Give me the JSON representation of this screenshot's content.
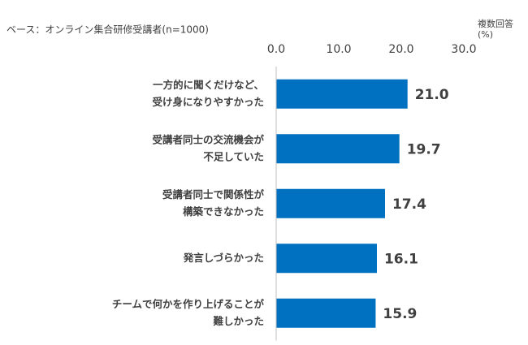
{
  "chart_data": {
    "type": "bar",
    "orientation": "horizontal",
    "annotation": "ベース：オンライン集合研修受講者(n=1000)",
    "note": [
      "複数回答",
      "(%)"
    ],
    "categories": [
      [
        "一方的に聞くだけなど、",
        "受け身になりやすかった"
      ],
      [
        "受講者同士の交流機会が",
        "不足していた"
      ],
      [
        "受講者同士で関係性が",
        "構築できなかった"
      ],
      [
        "発言しづらかった"
      ],
      [
        "チームで何かを作り上げることが",
        "難しかった"
      ]
    ],
    "values": [
      21.0,
      19.7,
      17.4,
      16.1,
      15.9
    ],
    "value_labels": [
      "21.0",
      "19.7",
      "17.4",
      "16.1",
      "15.9"
    ],
    "color": "#0070c0",
    "xlim": [
      0,
      30
    ],
    "xticks": [
      {
        "value": 0,
        "label": "0.0"
      },
      {
        "value": 10,
        "label": "10.0"
      },
      {
        "value": 20,
        "label": "20.0"
      },
      {
        "value": 30,
        "label": "30.0"
      }
    ]
  }
}
